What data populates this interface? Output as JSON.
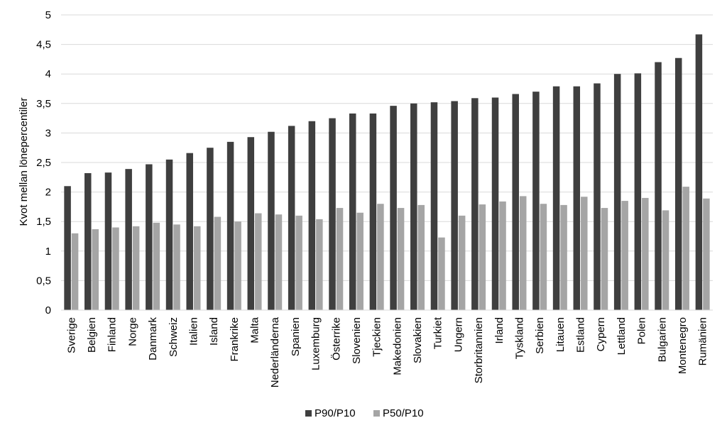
{
  "chart_data": {
    "type": "bar",
    "title": "",
    "xlabel": "",
    "ylabel": "Kvot mellan lönepercentiler",
    "ylim": [
      0,
      5
    ],
    "yticks": [
      "0",
      "0,5",
      "1",
      "1,5",
      "2",
      "2,5",
      "3",
      "3,5",
      "4",
      "4,5",
      "5"
    ],
    "grid": true,
    "legend_position": "bottom",
    "categories": [
      "Sverige",
      "Belgien",
      "Finland",
      "Norge",
      "Danmark",
      "Schweiz",
      "Italien",
      "Island",
      "Frankrike",
      "Malta",
      "Nederländerna",
      "Spanien",
      "Luxemburg",
      "Österrike",
      "Slovenien",
      "Tjeckien",
      "Makedonien",
      "Slovakien",
      "Turkiet",
      "Ungern",
      "Storbritannien",
      "Irland",
      "Tyskland",
      "Serbien",
      "Litauen",
      "Estland",
      "Cypern",
      "Lettland",
      "Polen",
      "Bulgarien",
      "Montenegro",
      "Rumänien"
    ],
    "series": [
      {
        "name": "P90/P10",
        "color": "#3f3f3f",
        "values": [
          2.1,
          2.32,
          2.33,
          2.39,
          2.47,
          2.55,
          2.66,
          2.75,
          2.85,
          2.93,
          3.02,
          3.12,
          3.2,
          3.25,
          3.33,
          3.33,
          3.46,
          3.5,
          3.52,
          3.54,
          3.59,
          3.6,
          3.66,
          3.7,
          3.79,
          3.79,
          3.84,
          4.0,
          4.01,
          4.2,
          4.27,
          4.67
        ]
      },
      {
        "name": "P50/P10",
        "color": "#a5a5a5",
        "values": [
          1.3,
          1.37,
          1.4,
          1.42,
          1.48,
          1.45,
          1.42,
          1.58,
          1.5,
          1.64,
          1.62,
          1.6,
          1.54,
          1.73,
          1.65,
          1.8,
          1.73,
          1.78,
          1.23,
          1.6,
          1.79,
          1.84,
          1.93,
          1.8,
          1.78,
          1.92,
          1.73,
          1.85,
          1.9,
          1.69,
          2.09,
          1.89
        ]
      }
    ]
  }
}
